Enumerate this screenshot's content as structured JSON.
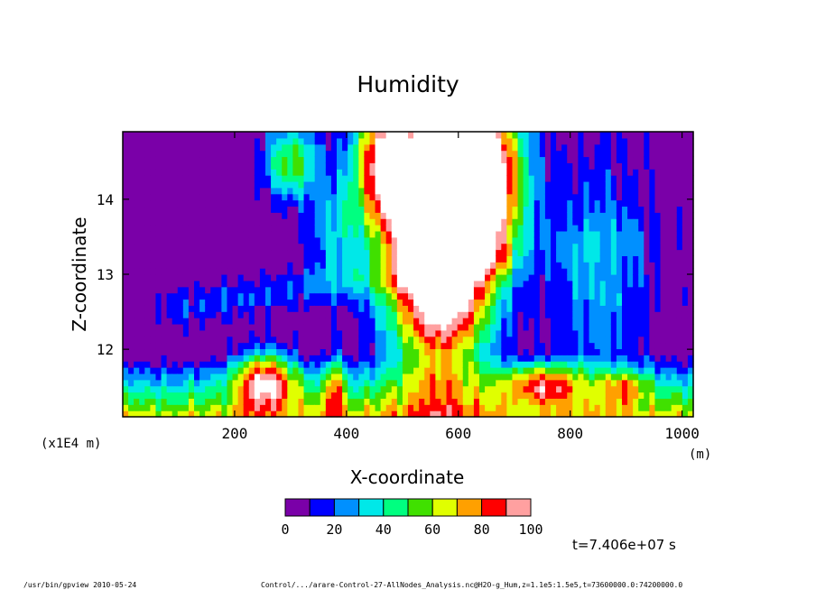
{
  "chart_data": {
    "type": "heatmap",
    "title": "Humidity",
    "xlabel": "X-coordinate",
    "ylabel": "Z-coordinate",
    "x_unit": "(m)",
    "y_unit": "(x1E4 m)",
    "xlim": [
      0,
      1020
    ],
    "ylim": [
      11.1,
      14.9
    ],
    "x_ticks": [
      200,
      400,
      600,
      800,
      1000
    ],
    "y_ticks": [
      12,
      13,
      14
    ],
    "x_tick_labels": [
      "200",
      "400",
      "600",
      "800",
      "1000"
    ],
    "y_tick_labels": [
      "12",
      "13",
      "14"
    ],
    "grid": false,
    "colorbar": {
      "levels": [
        0,
        10,
        20,
        30,
        40,
        50,
        60,
        70,
        80,
        90,
        100
      ],
      "tick_labels": [
        "0",
        "20",
        "40",
        "60",
        "80",
        "100"
      ],
      "colors": [
        "#7a00a8",
        "#0000ff",
        "#0090ff",
        "#00e8e8",
        "#00ff80",
        "#40e000",
        "#e0ff00",
        "#ffa000",
        "#ff0000",
        "#ffa0a0"
      ],
      "above_max_color": "#ffffff"
    },
    "time_label": "t=7.406e+07 s",
    "features": [
      {
        "x": 250,
        "z": 11.6,
        "value": 100
      },
      {
        "x": 380,
        "z": 11.5,
        "value": 85
      },
      {
        "x": 560,
        "z": 13.2,
        "value": 100
      },
      {
        "x": 610,
        "z": 13.8,
        "value": 100
      },
      {
        "x": 750,
        "z": 11.55,
        "value": 90
      },
      {
        "x": 900,
        "z": 11.5,
        "value": 85
      }
    ]
  },
  "footer": {
    "left": "/usr/bin/gpview  2010-05-24",
    "right": "Control/.../arare-Control-27-AllNodes_Analysis.nc@H2O-g_Hum,z=1.1e5:1.5e5,t=73600000.0:74200000.0"
  }
}
